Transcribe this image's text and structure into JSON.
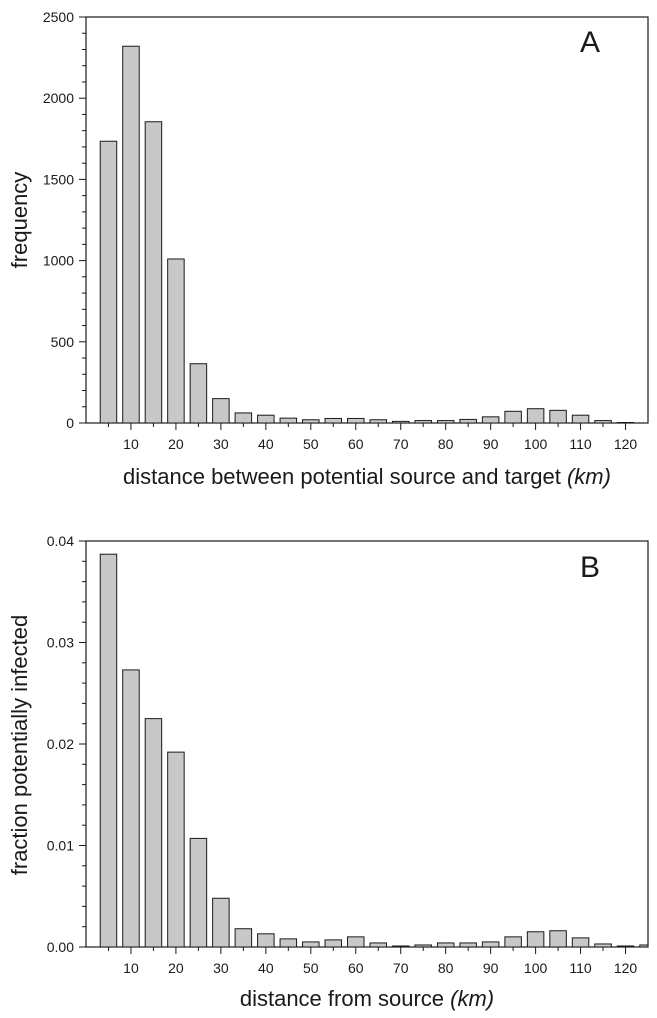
{
  "chart_data": [
    {
      "type": "bar",
      "panel_label": "A",
      "xlabel_main": "distance between potential source and target ",
      "xlabel_unit": "(km)",
      "ylabel": "frequency",
      "xlim": [
        0,
        125
      ],
      "ylim": [
        0,
        2500
      ],
      "x_tick_labels": [
        "10",
        "20",
        "30",
        "40",
        "50",
        "60",
        "70",
        "80",
        "90",
        "100",
        "110",
        "120"
      ],
      "y_tick_labels": [
        "0",
        "500",
        "1000",
        "1500",
        "2000",
        "2500"
      ],
      "x": [
        5,
        10,
        15,
        20,
        25,
        30,
        35,
        40,
        45,
        50,
        55,
        60,
        65,
        70,
        75,
        80,
        85,
        90,
        95,
        100,
        105,
        110,
        115,
        120
      ],
      "values": [
        1735,
        2320,
        1855,
        1010,
        365,
        150,
        62,
        48,
        30,
        20,
        28,
        28,
        20,
        10,
        15,
        15,
        22,
        38,
        72,
        88,
        78,
        48,
        15,
        3
      ],
      "grid": false
    },
    {
      "type": "bar",
      "panel_label": "B",
      "xlabel_main": "distance from source ",
      "xlabel_unit": "(km)",
      "ylabel": "fraction potentially infected",
      "xlim": [
        0,
        125
      ],
      "ylim": [
        0,
        0.04
      ],
      "x_tick_labels": [
        "10",
        "20",
        "30",
        "40",
        "50",
        "60",
        "70",
        "80",
        "90",
        "100",
        "110",
        "120"
      ],
      "y_tick_labels": [
        "0.00",
        "0.01",
        "0.02",
        "0.03",
        "0.04"
      ],
      "x": [
        5,
        10,
        15,
        20,
        25,
        30,
        35,
        40,
        45,
        50,
        55,
        60,
        65,
        70,
        75,
        80,
        85,
        90,
        95,
        100,
        105,
        110,
        115,
        120,
        125
      ],
      "values": [
        0.0387,
        0.0273,
        0.0225,
        0.0192,
        0.0107,
        0.0048,
        0.0018,
        0.0013,
        0.0008,
        0.0005,
        0.0007,
        0.001,
        0.0004,
        0.0001,
        0.0002,
        0.0004,
        0.0004,
        0.0005,
        0.001,
        0.0015,
        0.0016,
        0.0009,
        0.0003,
        0.0001,
        0.0002
      ],
      "grid": false
    }
  ]
}
